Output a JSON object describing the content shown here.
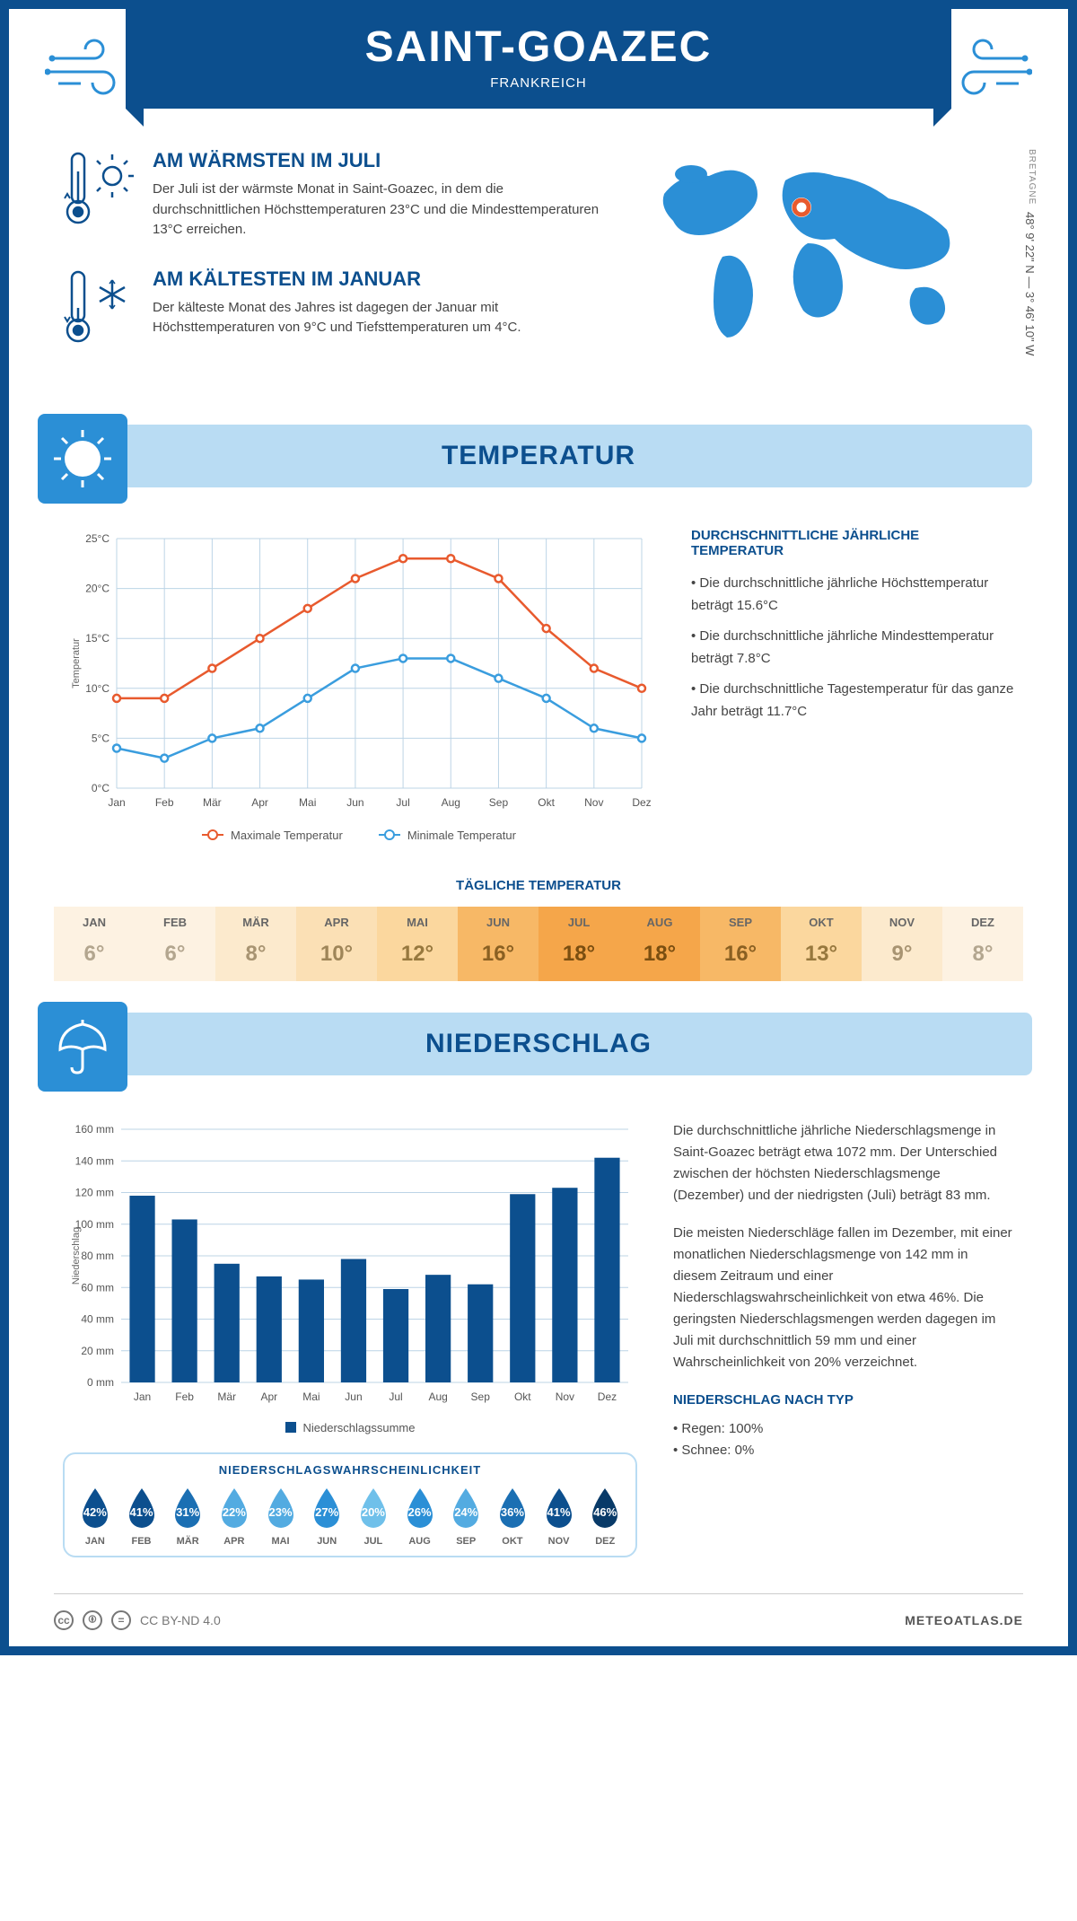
{
  "header": {
    "title": "SAINT-GOAZEC",
    "subtitle": "FRANKREICH"
  },
  "summary_warm": {
    "title": "AM WÄRMSTEN IM JULI",
    "text": "Der Juli ist der wärmste Monat in Saint-Goazec, in dem die durchschnittlichen Höchsttemperaturen 23°C und die Mindesttemperaturen 13°C erreichen."
  },
  "summary_cold": {
    "title": "AM KÄLTESTEN IM JANUAR",
    "text": "Der kälteste Monat des Jahres ist dagegen der Januar mit Höchsttemperaturen von 9°C und Tiefsttemperaturen um 4°C."
  },
  "map": {
    "coords": "48° 9' 22\" N — 3° 46' 10\" W",
    "region": "BRETAGNE"
  },
  "sections": {
    "temperature": "TEMPERATUR",
    "precipitation": "NIEDERSCHLAG"
  },
  "temp_chart": {
    "months": [
      "Jan",
      "Feb",
      "Mär",
      "Apr",
      "Mai",
      "Jun",
      "Jul",
      "Aug",
      "Sep",
      "Okt",
      "Nov",
      "Dez"
    ],
    "max": [
      9,
      9,
      12,
      15,
      18,
      21,
      23,
      23,
      21,
      16,
      12,
      10
    ],
    "min": [
      4,
      3,
      5,
      6,
      9,
      12,
      13,
      13,
      11,
      9,
      6,
      5
    ],
    "ylabel": "Temperatur",
    "ylim": [
      0,
      25
    ],
    "ytick_step": 5,
    "max_color": "#e85a2e",
    "min_color": "#3a9dde",
    "grid_color": "#bcd4e6",
    "legend_max": "Maximale Temperatur",
    "legend_min": "Minimale Temperatur"
  },
  "temp_side": {
    "title": "DURCHSCHNITTLICHE JÄHRLICHE TEMPERATUR",
    "line1": "• Die durchschnittliche jährliche Höchsttemperatur beträgt 15.6°C",
    "line2": "• Die durchschnittliche jährliche Mindesttemperatur beträgt 7.8°C",
    "line3": "• Die durchschnittliche Tagestemperatur für das ganze Jahr beträgt 11.7°C"
  },
  "daily": {
    "title": "TÄGLICHE TEMPERATUR",
    "months": [
      "JAN",
      "FEB",
      "MÄR",
      "APR",
      "MAI",
      "JUN",
      "JUL",
      "AUG",
      "SEP",
      "OKT",
      "NOV",
      "DEZ"
    ],
    "temps": [
      "6°",
      "6°",
      "8°",
      "10°",
      "12°",
      "16°",
      "18°",
      "18°",
      "16°",
      "13°",
      "9°",
      "8°"
    ],
    "bg_colors": [
      "#fdf2e2",
      "#fdf2e2",
      "#fceacd",
      "#fbe0b5",
      "#fbd79e",
      "#f7b866",
      "#f5a64a",
      "#f5a64a",
      "#f7b866",
      "#fbd79e",
      "#fceacd",
      "#fdf2e2"
    ],
    "text_colors": [
      "#b3a68f",
      "#b3a68f",
      "#a89472",
      "#9e8558",
      "#97783e",
      "#8a6022",
      "#7a4e10",
      "#7a4e10",
      "#8a6022",
      "#97783e",
      "#a89472",
      "#b3a68f"
    ]
  },
  "precip_chart": {
    "months": [
      "Jan",
      "Feb",
      "Mär",
      "Apr",
      "Mai",
      "Jun",
      "Jul",
      "Aug",
      "Sep",
      "Okt",
      "Nov",
      "Dez"
    ],
    "values": [
      118,
      103,
      75,
      67,
      65,
      78,
      59,
      68,
      62,
      119,
      123,
      142
    ],
    "ylabel": "Niederschlag",
    "ylim": [
      0,
      160
    ],
    "ytick_step": 20,
    "bar_color": "#0c4f8e",
    "grid_color": "#bcd4e6",
    "legend": "Niederschlagssumme"
  },
  "precip_text": {
    "p1": "Die durchschnittliche jährliche Niederschlagsmenge in Saint-Goazec beträgt etwa 1072 mm. Der Unterschied zwischen der höchsten Niederschlagsmenge (Dezember) und der niedrigsten (Juli) beträgt 83 mm.",
    "p2": "Die meisten Niederschläge fallen im Dezember, mit einer monatlichen Niederschlagsmenge von 142 mm in diesem Zeitraum und einer Niederschlagswahrscheinlichkeit von etwa 46%. Die geringsten Niederschlagsmengen werden dagegen im Juli mit durchschnittlich 59 mm und einer Wahrscheinlichkeit von 20% verzeichnet.",
    "type_title": "NIEDERSCHLAG NACH TYP",
    "type_rain": "• Regen: 100%",
    "type_snow": "• Schnee: 0%"
  },
  "prob": {
    "title": "NIEDERSCHLAGSWAHRSCHEINLICHKEIT",
    "months": [
      "JAN",
      "FEB",
      "MÄR",
      "APR",
      "MAI",
      "JUN",
      "JUL",
      "AUG",
      "SEP",
      "OKT",
      "NOV",
      "DEZ"
    ],
    "values": [
      "42%",
      "41%",
      "31%",
      "22%",
      "23%",
      "27%",
      "20%",
      "26%",
      "24%",
      "36%",
      "41%",
      "46%"
    ],
    "colors": [
      "#0c4f8e",
      "#0c4f8e",
      "#1b6fb3",
      "#53abe1",
      "#53abe1",
      "#2b8fd6",
      "#6fc0ea",
      "#2b8fd6",
      "#53abe1",
      "#1b6fb3",
      "#0c4f8e",
      "#083a68"
    ]
  },
  "footer": {
    "license": "CC BY-ND 4.0",
    "site": "METEOATLAS.DE"
  }
}
